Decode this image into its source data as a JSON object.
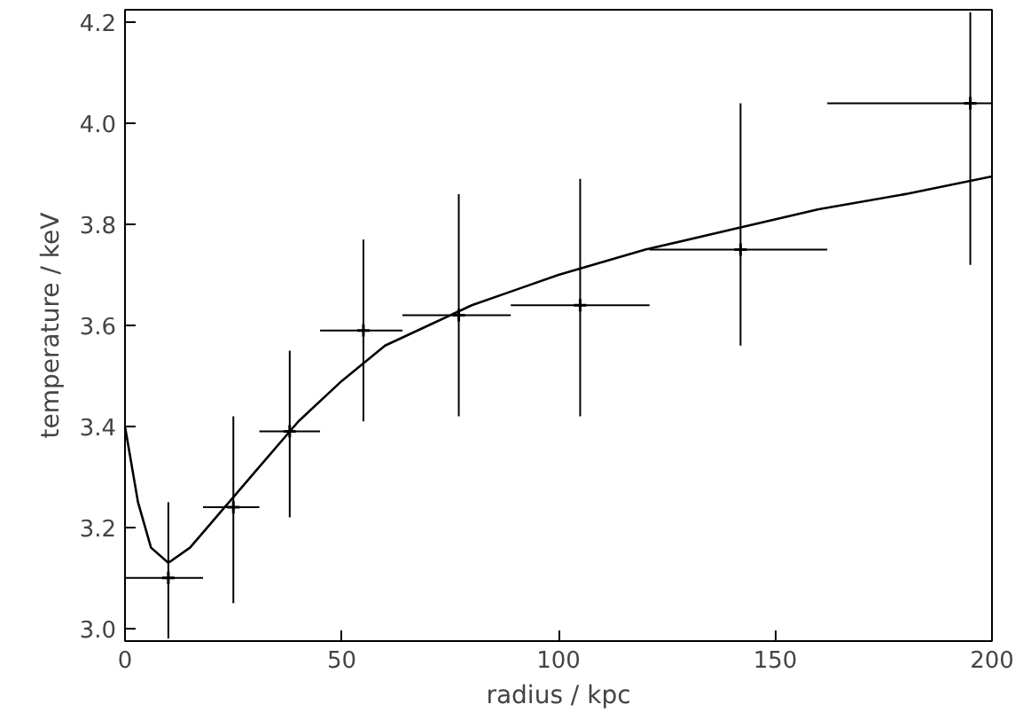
{
  "chart_data": {
    "type": "scatter",
    "xlabel": "radius / kpc",
    "ylabel": "temperature / keV",
    "xlim": [
      0,
      200
    ],
    "ylim": [
      2.975,
      4.225
    ],
    "xticks": [
      0,
      50,
      100,
      150,
      200
    ],
    "yticks": [
      {
        "value": 3.0,
        "label": "3.0"
      },
      {
        "value": 3.2,
        "label": "3.2"
      },
      {
        "value": 3.4,
        "label": "3.4"
      },
      {
        "value": 3.6,
        "label": "3.6"
      },
      {
        "value": 3.8,
        "label": "3.8"
      },
      {
        "value": 4.0,
        "label": "4.0"
      },
      {
        "value": 4.2,
        "label": "4.2"
      }
    ],
    "grid": false,
    "series": [
      {
        "color": "#000000",
        "marker": "cross",
        "x": [
          10,
          25,
          38,
          55,
          77,
          105,
          142,
          195
        ],
        "values": [
          3.1,
          3.24,
          3.39,
          3.59,
          3.62,
          3.64,
          3.75,
          4.04
        ],
        "errors": [
          [
            2.98,
            3.25
          ],
          [
            3.05,
            3.42
          ],
          [
            3.22,
            3.55
          ],
          [
            3.41,
            3.77
          ],
          [
            3.42,
            3.86
          ],
          [
            3.42,
            3.89
          ],
          [
            3.56,
            4.04
          ],
          [
            3.72,
            4.22
          ]
        ],
        "xerrors": [
          [
            0,
            18
          ],
          [
            18,
            31
          ],
          [
            31,
            45
          ],
          [
            45,
            64
          ],
          [
            64,
            89
          ],
          [
            89,
            121
          ],
          [
            121,
            162
          ],
          [
            162,
            200
          ]
        ]
      },
      {
        "type": "line",
        "color": "#000000",
        "line_style": "solid",
        "marker": "none",
        "x": [
          0,
          3,
          6,
          10,
          15,
          20,
          30,
          40,
          50,
          60,
          70,
          80,
          90,
          100,
          120,
          140,
          160,
          180,
          200
        ],
        "values": [
          3.4,
          3.25,
          3.16,
          3.13,
          3.16,
          3.21,
          3.31,
          3.41,
          3.49,
          3.56,
          3.6,
          3.64,
          3.67,
          3.7,
          3.75,
          3.79,
          3.83,
          3.86,
          3.895
        ]
      }
    ]
  }
}
